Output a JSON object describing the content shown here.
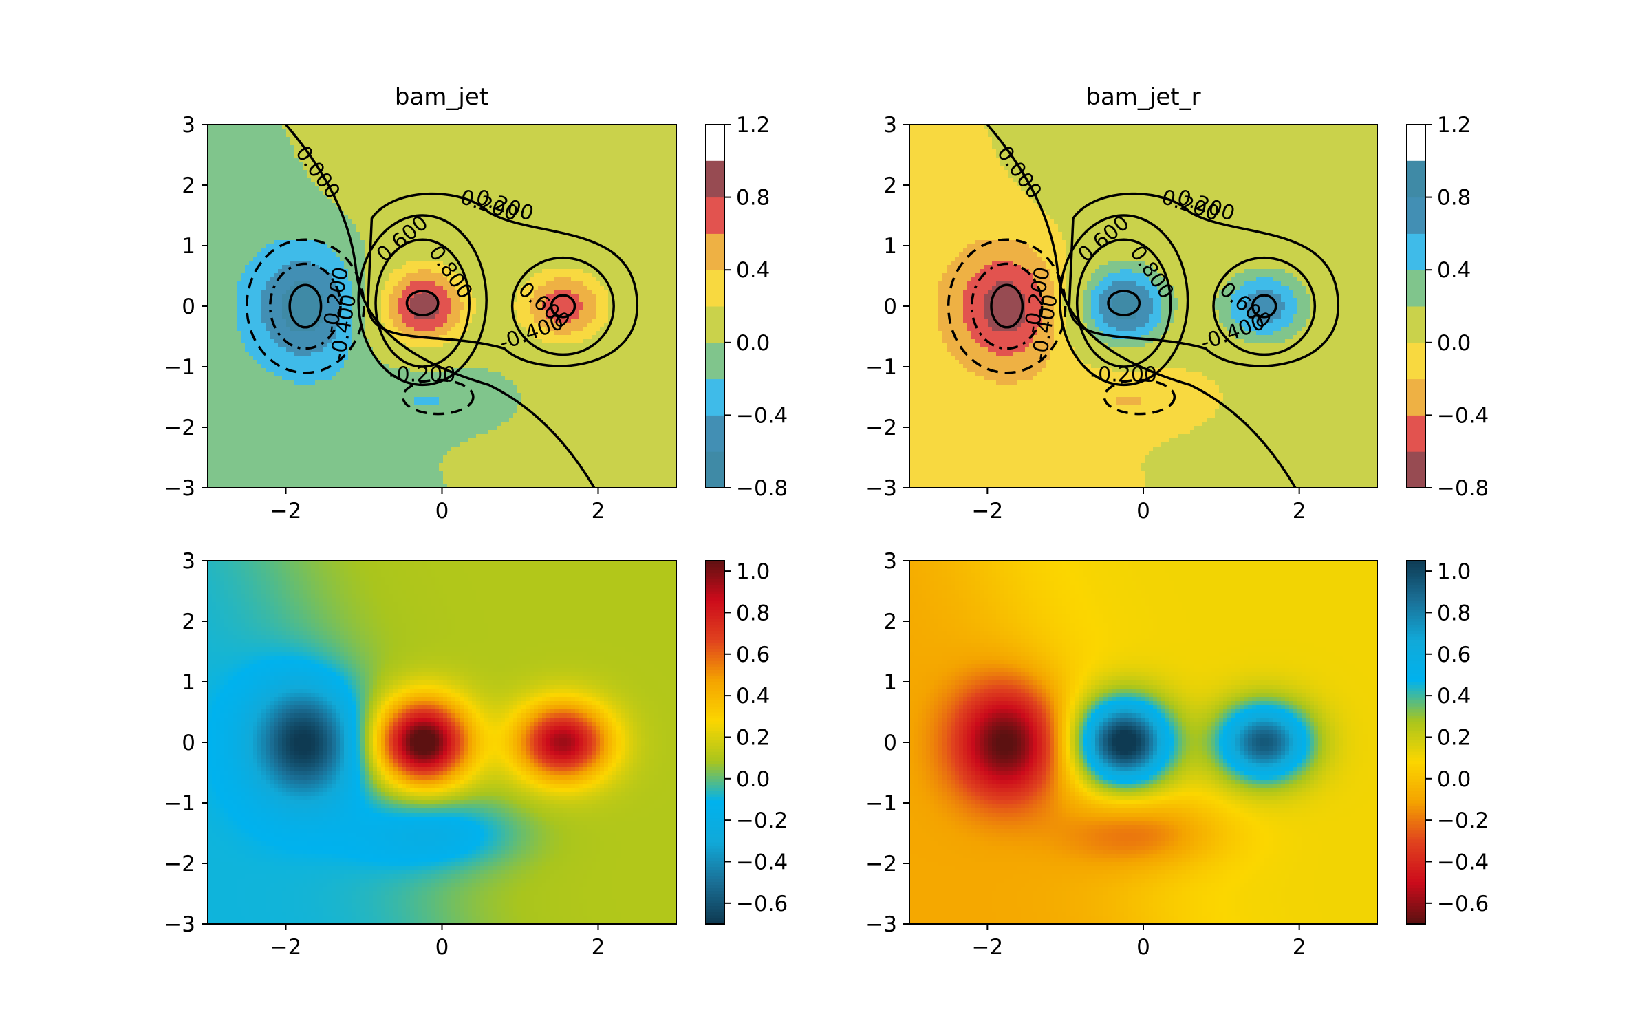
{
  "figure": {
    "titles": {
      "top_left": "bam_jet",
      "top_right": "bam_jet_r"
    }
  },
  "colors": {
    "bam_jet": [
      "#0e3a52",
      "#1a6f96",
      "#11a9d8",
      "#00b2ee",
      "#a9c51d",
      "#fbd600",
      "#f4a300",
      "#e0421e",
      "#cc0b1b",
      "#5c1111"
    ],
    "bam_jet_filled_levels": [
      "#3f8aa6",
      "#428fb4",
      "#3fbbe9",
      "#80c58c",
      "#cad24b",
      "#f8d940",
      "#eeb144",
      "#e2534f",
      "#974b52"
    ]
  },
  "chart_data": [
    {
      "panel": "top-left",
      "type": "contourf",
      "title": "bam_jet",
      "xlabel": "",
      "ylabel": "",
      "xlim": [
        -3,
        3
      ],
      "ylim": [
        -3,
        3
      ],
      "xticks": [
        -2,
        0,
        2
      ],
      "yticks": [
        -3,
        -2,
        -1,
        0,
        1,
        2,
        3
      ],
      "colormap": "bam_jet",
      "colorbar": {
        "range": [
          -0.8,
          1.2
        ],
        "ticks": [
          -0.8,
          -0.4,
          0.0,
          0.4,
          0.8,
          1.2
        ]
      },
      "fill_levels": [
        -0.8,
        -0.6,
        -0.4,
        -0.2,
        0.0,
        0.2,
        0.4,
        0.6,
        0.8,
        1.0,
        1.2
      ],
      "contour_labels": [
        "0.000",
        "0.200",
        "0.600",
        "0.800",
        "-0.400",
        "-0.200",
        "0.600",
        "-0.400",
        "-0.200",
        "0.200"
      ],
      "peaks": [
        {
          "x": -0.25,
          "y": 0.0,
          "value": 1.05
        },
        {
          "x": 1.55,
          "y": 0.0,
          "value": 0.84
        },
        {
          "x": -1.75,
          "y": 0.0,
          "value": -0.65
        },
        {
          "x": 0.0,
          "y": -1.5,
          "value": -0.25
        }
      ]
    },
    {
      "panel": "top-right",
      "type": "contourf",
      "title": "bam_jet_r",
      "xlabel": "",
      "ylabel": "",
      "xlim": [
        -3,
        3
      ],
      "ylim": [
        -3,
        3
      ],
      "xticks": [
        -2,
        0,
        2
      ],
      "yticks": [
        -3,
        -2,
        -1,
        0,
        1,
        2,
        3
      ],
      "colormap": "bam_jet_r",
      "colorbar": {
        "range": [
          -0.8,
          1.2
        ],
        "ticks": [
          -0.8,
          -0.4,
          0.0,
          0.4,
          0.8,
          1.2
        ]
      },
      "fill_levels": [
        -0.8,
        -0.6,
        -0.4,
        -0.2,
        0.0,
        0.2,
        0.4,
        0.6,
        0.8,
        1.0,
        1.2
      ],
      "contour_labels": [
        "0.000",
        "0.200",
        "0.600",
        "0.800",
        "-0.400",
        "-0.200",
        "0.600",
        "-0.400",
        "-0.200",
        "0.200"
      ]
    },
    {
      "panel": "bottom-left",
      "type": "heatmap",
      "xlim": [
        -3,
        3
      ],
      "ylim": [
        -3,
        3
      ],
      "xticks": [
        -2,
        0,
        2
      ],
      "yticks": [
        -3,
        -2,
        -1,
        0,
        1,
        2,
        3
      ],
      "colormap": "bam_jet",
      "colorbar": {
        "range": [
          -0.7,
          1.05
        ],
        "ticks": [
          -0.6,
          -0.4,
          -0.2,
          0.0,
          0.2,
          0.4,
          0.6,
          0.8,
          1.0
        ]
      }
    },
    {
      "panel": "bottom-right",
      "type": "heatmap",
      "xlim": [
        -3,
        3
      ],
      "ylim": [
        -3,
        3
      ],
      "xticks": [
        -2,
        0,
        2
      ],
      "yticks": [
        -3,
        -2,
        -1,
        0,
        1,
        2,
        3
      ],
      "colormap": "bam_jet_r",
      "colorbar": {
        "range": [
          -0.7,
          1.05
        ],
        "ticks": [
          -0.6,
          -0.4,
          -0.2,
          0.0,
          0.2,
          0.4,
          0.6,
          0.8,
          1.0
        ]
      }
    }
  ]
}
